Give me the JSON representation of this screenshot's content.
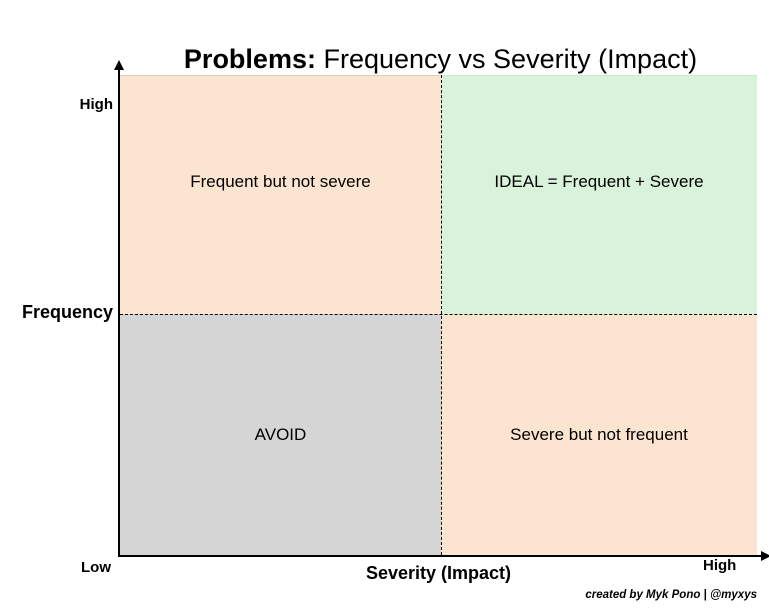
{
  "title": {
    "prefix": "Problems:",
    "suffix": " Frequency vs Severity (Impact)"
  },
  "axes": {
    "y": {
      "label": "Frequency",
      "tick_top": "High",
      "tick_bottom": "Low"
    },
    "x": {
      "label": "Severity (Impact)",
      "tick_right": "High"
    }
  },
  "quadrants": {
    "top_left": {
      "label": "Frequent but not severe",
      "color": "#fce5d0"
    },
    "top_right": {
      "label": "IDEAL = Frequent + Severe",
      "color": "#d8f3da"
    },
    "bottom_left": {
      "label": "AVOID",
      "color": "#d5d5d5"
    },
    "bottom_right": {
      "label": "Severe but not frequent",
      "color": "#fce5d0"
    }
  },
  "credit": "created by Myk Pono | @myxys",
  "colors": {
    "axis": "#000000",
    "divider_dashed": "#000000",
    "peach": "#fce5d0",
    "green": "#d8f3da",
    "gray": "#d5d5d5",
    "background": "#ffffff"
  },
  "chart_data": {
    "type": "quadrant-matrix",
    "title": "Problems: Frequency vs Severity (Impact)",
    "xlabel": "Severity (Impact)",
    "ylabel": "Frequency",
    "x_ticks": [
      "High"
    ],
    "y_ticks": [
      "High",
      "Low"
    ],
    "quadrants": [
      {
        "position": "top-left",
        "frequency": "high",
        "severity": "low",
        "label": "Frequent but not severe",
        "fill": "#fce5d0"
      },
      {
        "position": "top-right",
        "frequency": "high",
        "severity": "high",
        "label": "IDEAL = Frequent + Severe",
        "fill": "#d8f3da"
      },
      {
        "position": "bottom-left",
        "frequency": "low",
        "severity": "low",
        "label": "AVOID",
        "fill": "#d5d5d5"
      },
      {
        "position": "bottom-right",
        "frequency": "low",
        "severity": "high",
        "label": "Severe but not frequent",
        "fill": "#fce5d0"
      }
    ]
  }
}
